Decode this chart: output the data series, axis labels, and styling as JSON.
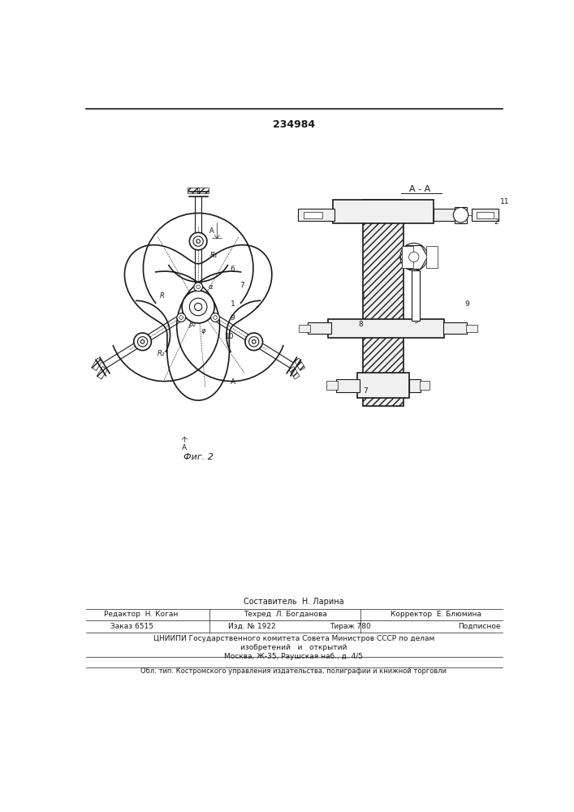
{
  "patent_number": "234984",
  "background_color": "#ffffff",
  "line_color": "#1a1a1a",
  "fig_width": 7.07,
  "fig_height": 10.0,
  "fig2_label": "Фиг. 2",
  "aa_label": "A - A"
}
